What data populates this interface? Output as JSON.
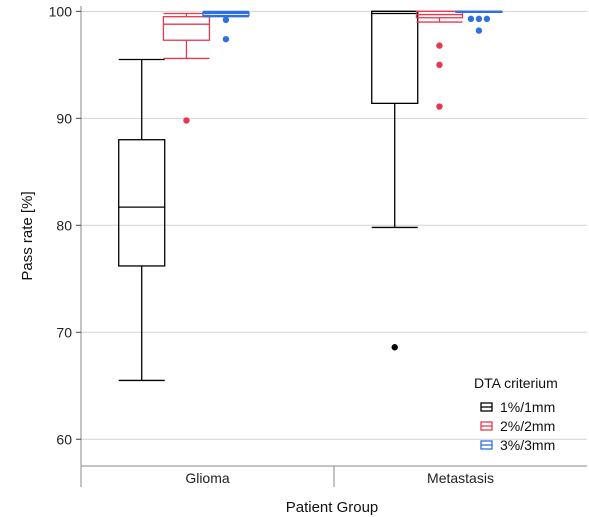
{
  "chart_data": {
    "type": "box",
    "xlabel": "Patient Group",
    "ylabel": "Pass rate [%]",
    "ylim": [
      57.5,
      100.5
    ],
    "yticks": [
      60,
      70,
      80,
      90,
      100
    ],
    "grid": "horizontal",
    "categories": [
      "Glioma",
      "Metastasis"
    ],
    "legend": {
      "title": "DTA criterium",
      "placement": "bottom-right"
    },
    "series": [
      {
        "name": "1%/1mm",
        "color": "#000000",
        "boxes": [
          {
            "category": "Glioma",
            "whisker_low": 65.5,
            "q1": 76.2,
            "median": 81.7,
            "q3": 88.0,
            "whisker_high": 95.5,
            "outliers": []
          },
          {
            "category": "Metastasis",
            "whisker_low": 79.8,
            "q1": 91.4,
            "median": 99.8,
            "q3": 100.0,
            "whisker_high": 100.0,
            "outliers": [
              68.6
            ]
          }
        ]
      },
      {
        "name": "2%/2mm",
        "color": "#e8384f",
        "boxes": [
          {
            "category": "Glioma",
            "whisker_low": 95.6,
            "q1": 97.3,
            "median": 98.8,
            "q3": 99.5,
            "whisker_high": 99.8,
            "outliers": [
              89.8
            ]
          },
          {
            "category": "Metastasis",
            "whisker_low": 99.0,
            "q1": 99.4,
            "median": 99.7,
            "q3": 100.0,
            "whisker_high": 100.0,
            "outliers": [
              96.8,
              95.0,
              91.1
            ]
          }
        ]
      },
      {
        "name": "3%/3mm",
        "color": "#2f6fe0",
        "boxes": [
          {
            "category": "Glioma",
            "whisker_low": 99.5,
            "q1": 99.6,
            "median": 99.8,
            "q3": 99.9,
            "whisker_high": 100.0,
            "outliers": [
              99.2,
              97.4
            ]
          },
          {
            "category": "Metastasis",
            "whisker_low": 100.0,
            "q1": 100.0,
            "median": 100.0,
            "q3": 100.0,
            "whisker_high": 100.0,
            "outliers": [
              99.3,
              99.3,
              99.3,
              98.2
            ]
          }
        ]
      }
    ]
  }
}
